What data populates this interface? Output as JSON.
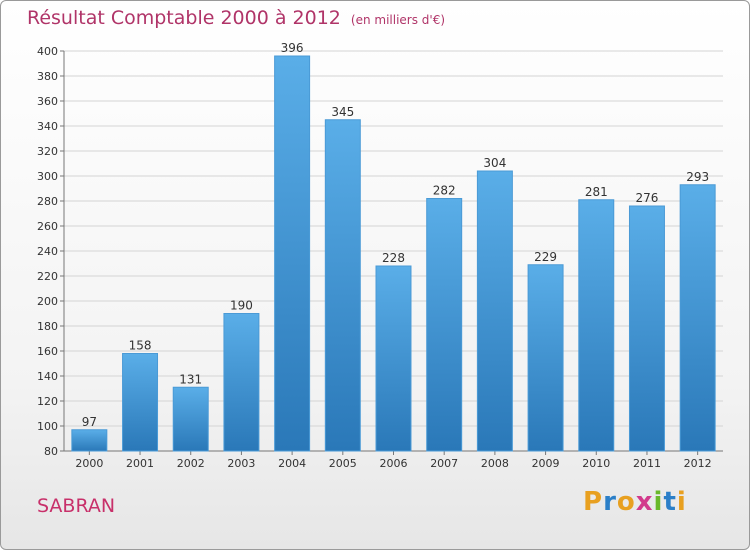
{
  "header": {
    "title": "Résultat Comptable 2000 à 2012",
    "unit": "(en milliers d'€)"
  },
  "region": "SABRAN",
  "logo": {
    "text": "Proxiti",
    "letters": [
      "P",
      "r",
      "o",
      "x",
      "i",
      "t",
      "i"
    ],
    "colors": [
      "#e8a020",
      "#2b7fc8",
      "#e8a020",
      "#d23a8c",
      "#6ab82a",
      "#2b7fc8",
      "#e8a020"
    ]
  },
  "chart_data": {
    "type": "bar",
    "title": "Résultat Comptable 2000 à 2012",
    "xlabel": "",
    "ylabel": "",
    "categories": [
      "2000",
      "2001",
      "2002",
      "2003",
      "2004",
      "2005",
      "2006",
      "2007",
      "2008",
      "2009",
      "2010",
      "2011",
      "2012"
    ],
    "values": [
      97,
      158,
      131,
      190,
      396,
      345,
      228,
      282,
      304,
      229,
      281,
      276,
      293
    ],
    "ylim": [
      80,
      400
    ],
    "yticks": [
      80,
      100,
      120,
      140,
      160,
      180,
      200,
      220,
      240,
      260,
      280,
      300,
      320,
      340,
      360,
      380,
      400
    ],
    "grid": true,
    "colors": {
      "bar_top": "#5aaee8",
      "bar_bottom": "#2a78b8",
      "bar_edge": "#4a9ad6"
    }
  }
}
